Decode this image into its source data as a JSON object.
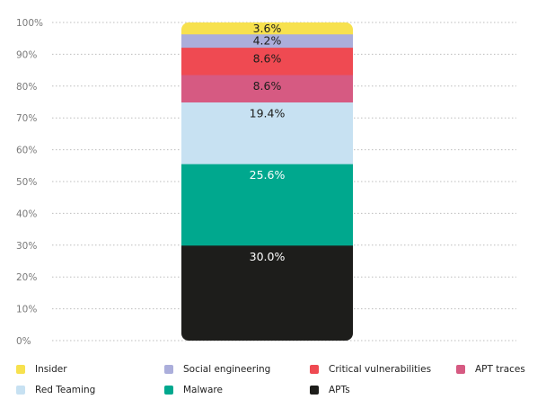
{
  "chart_data": {
    "type": "bar",
    "stacked": true,
    "categories": [
      ""
    ],
    "ylim": [
      0,
      100
    ],
    "ytick_labels": [
      "0%",
      "10%",
      "20%",
      "30%",
      "40%",
      "50%",
      "60%",
      "70%",
      "80%",
      "90%",
      "100%"
    ],
    "grid": true,
    "legend_placement": "bottom",
    "series": [
      {
        "name": "APTs",
        "values": [
          30.0
        ],
        "label": "30.0%",
        "color": "#1d1d1b",
        "label_color": "#ffffff"
      },
      {
        "name": "Malware",
        "values": [
          25.6
        ],
        "label": "25.6%",
        "color": "#00a88e",
        "label_color": "#ffffff"
      },
      {
        "name": "Red Teaming",
        "values": [
          19.4
        ],
        "label": "19.4%",
        "color": "#c7e1f2",
        "label_color": "#1d1d1b"
      },
      {
        "name": "APT traces",
        "values": [
          8.6
        ],
        "label": "8.6%",
        "color": "#d65a82",
        "label_color": "#1d1d1b"
      },
      {
        "name": "Critical vulnerabilities",
        "values": [
          8.6
        ],
        "label": "8.6%",
        "color": "#ef4a52",
        "label_color": "#1d1d1b"
      },
      {
        "name": "Social engineering",
        "values": [
          4.2
        ],
        "label": "4.2%",
        "color": "#abaedb",
        "label_color": "#1d1d1b"
      },
      {
        "name": "Insider",
        "values": [
          3.6
        ],
        "label": "3.6%",
        "color": "#f7e14e",
        "label_color": "#1d1d1b"
      }
    ]
  },
  "legend": [
    {
      "label": "Insider",
      "color": "#f7e14e"
    },
    {
      "label": "Social engineering",
      "color": "#abaedb"
    },
    {
      "label": "Critical vulnerabilities",
      "color": "#ef4a52"
    },
    {
      "label": "APT traces",
      "color": "#d65a82"
    },
    {
      "label": "Red Teaming",
      "color": "#c7e1f2"
    },
    {
      "label": "Malware",
      "color": "#00a88e"
    },
    {
      "label": "APTs",
      "color": "#1d1d1b"
    }
  ]
}
